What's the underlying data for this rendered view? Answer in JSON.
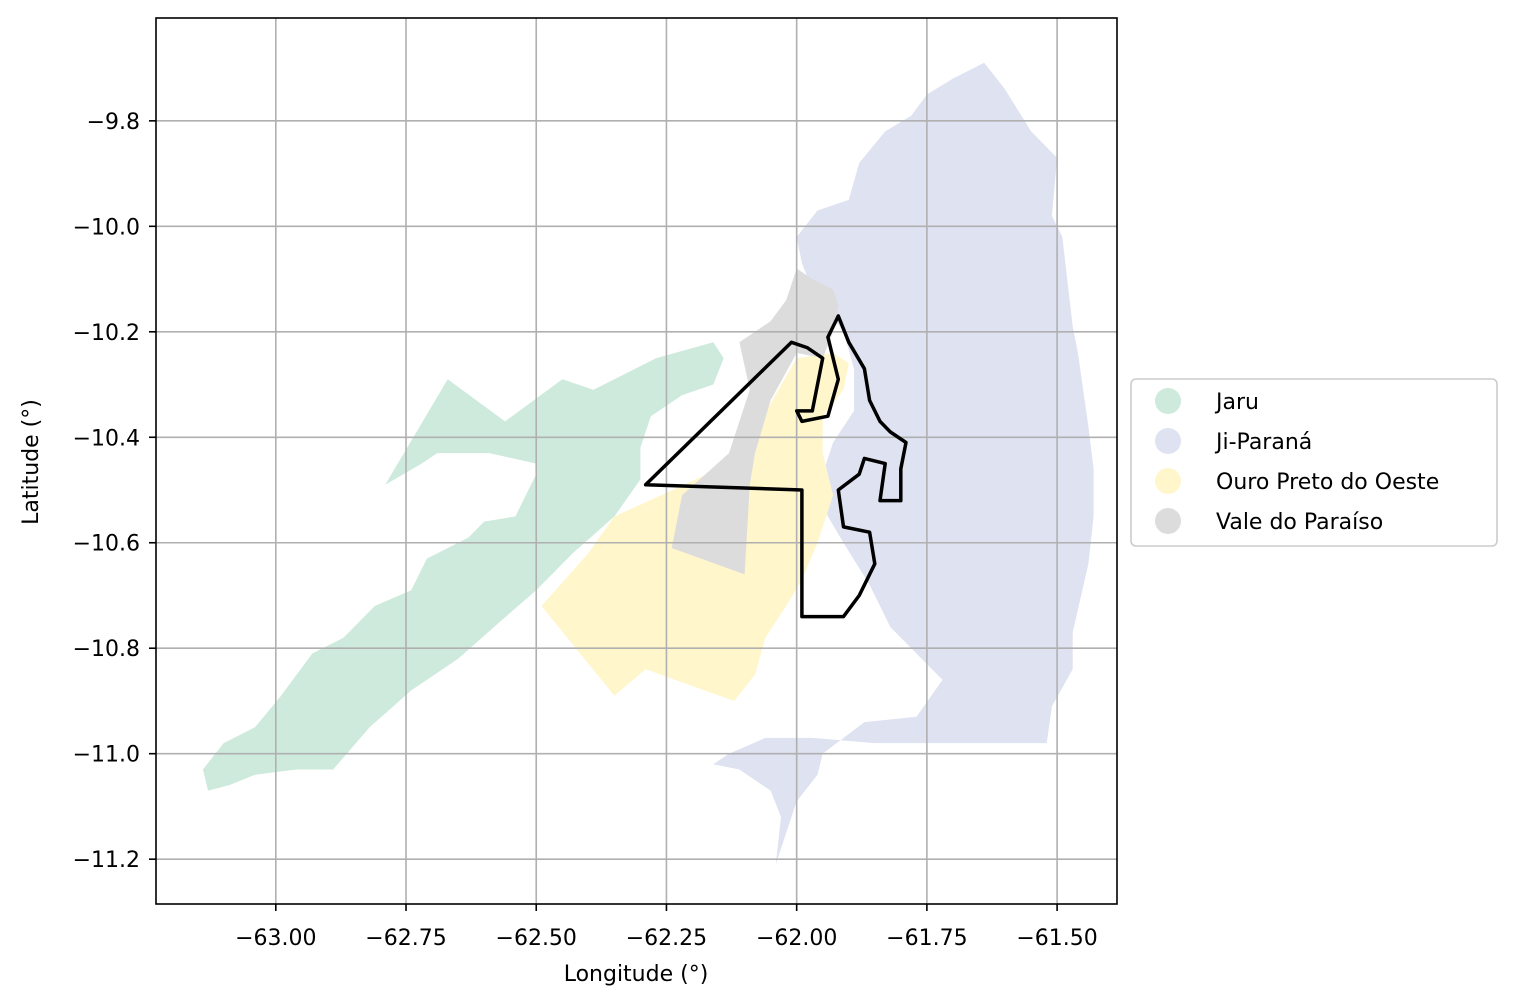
{
  "chart_data": {
    "type": "choropleth-map",
    "xlabel": "Longitude (°)",
    "ylabel": "Latitude (°)",
    "xlim": [
      -63.23,
      -61.385
    ],
    "ylim": [
      -11.285,
      -9.605
    ],
    "grid": true,
    "x_ticks": [
      {
        "value": -63.0,
        "label": "−63.00"
      },
      {
        "value": -62.75,
        "label": "−62.75"
      },
      {
        "value": -62.5,
        "label": "−62.50"
      },
      {
        "value": -62.25,
        "label": "−62.25"
      },
      {
        "value": -62.0,
        "label": "−62.00"
      },
      {
        "value": -61.75,
        "label": "−61.75"
      },
      {
        "value": -61.5,
        "label": "−61.50"
      }
    ],
    "y_ticks": [
      {
        "value": -9.8,
        "label": "−9.8"
      },
      {
        "value": -10.0,
        "label": "−10.0"
      },
      {
        "value": -10.2,
        "label": "−10.2"
      },
      {
        "value": -10.4,
        "label": "−10.4"
      },
      {
        "value": -10.6,
        "label": "−10.6"
      },
      {
        "value": -10.8,
        "label": "−10.8"
      },
      {
        "value": -11.0,
        "label": "−11.0"
      },
      {
        "value": -11.2,
        "label": "−11.2"
      }
    ],
    "legend_position": "right",
    "regions": [
      {
        "name": "Jaru",
        "color": "#cdeadc",
        "polygon": [
          [
            -63.13,
            -11.07
          ],
          [
            -63.14,
            -11.03
          ],
          [
            -63.1,
            -10.98
          ],
          [
            -63.04,
            -10.95
          ],
          [
            -62.99,
            -10.89
          ],
          [
            -62.93,
            -10.81
          ],
          [
            -62.87,
            -10.78
          ],
          [
            -62.81,
            -10.72
          ],
          [
            -62.74,
            -10.69
          ],
          [
            -62.71,
            -10.63
          ],
          [
            -62.63,
            -10.59
          ],
          [
            -62.6,
            -10.56
          ],
          [
            -62.54,
            -10.55
          ],
          [
            -62.5,
            -10.47
          ],
          [
            -62.5,
            -10.45
          ],
          [
            -62.59,
            -10.43
          ],
          [
            -62.64,
            -10.43
          ],
          [
            -62.69,
            -10.43
          ],
          [
            -62.72,
            -10.45
          ],
          [
            -62.79,
            -10.49
          ],
          [
            -62.67,
            -10.29
          ],
          [
            -62.56,
            -10.37
          ],
          [
            -62.45,
            -10.29
          ],
          [
            -62.39,
            -10.31
          ],
          [
            -62.33,
            -10.28
          ],
          [
            -62.27,
            -10.25
          ],
          [
            -62.16,
            -10.22
          ],
          [
            -62.14,
            -10.25
          ],
          [
            -62.16,
            -10.3
          ],
          [
            -62.22,
            -10.32
          ],
          [
            -62.28,
            -10.36
          ],
          [
            -62.3,
            -10.42
          ],
          [
            -62.3,
            -10.48
          ],
          [
            -62.35,
            -10.55
          ],
          [
            -62.43,
            -10.62
          ],
          [
            -62.5,
            -10.69
          ],
          [
            -62.57,
            -10.75
          ],
          [
            -62.65,
            -10.82
          ],
          [
            -62.74,
            -10.88
          ],
          [
            -62.82,
            -10.95
          ],
          [
            -62.89,
            -11.03
          ],
          [
            -62.96,
            -11.03
          ],
          [
            -63.04,
            -11.04
          ],
          [
            -63.09,
            -11.06
          ]
        ]
      },
      {
        "name": "Ji-Paraná",
        "color": "#dee2f1",
        "polygon": [
          [
            -61.64,
            -9.69
          ],
          [
            -61.6,
            -9.74
          ],
          [
            -61.55,
            -9.82
          ],
          [
            -61.5,
            -9.87
          ],
          [
            -61.51,
            -9.98
          ],
          [
            -61.49,
            -10.02
          ],
          [
            -61.47,
            -10.19
          ],
          [
            -61.46,
            -10.24
          ],
          [
            -61.44,
            -10.38
          ],
          [
            -61.43,
            -10.46
          ],
          [
            -61.43,
            -10.55
          ],
          [
            -61.44,
            -10.64
          ],
          [
            -61.47,
            -10.77
          ],
          [
            -61.47,
            -10.84
          ],
          [
            -61.51,
            -10.91
          ],
          [
            -61.52,
            -10.98
          ],
          [
            -61.7,
            -10.98
          ],
          [
            -61.85,
            -10.98
          ],
          [
            -61.97,
            -10.97
          ],
          [
            -62.06,
            -10.97
          ],
          [
            -62.13,
            -11.0
          ],
          [
            -62.16,
            -11.02
          ],
          [
            -62.11,
            -11.03
          ],
          [
            -62.05,
            -11.07
          ],
          [
            -62.03,
            -11.12
          ],
          [
            -62.04,
            -11.21
          ],
          [
            -62.02,
            -11.15
          ],
          [
            -62.0,
            -11.09
          ],
          [
            -61.96,
            -11.04
          ],
          [
            -61.95,
            -11.0
          ],
          [
            -61.87,
            -10.94
          ],
          [
            -61.77,
            -10.93
          ],
          [
            -61.72,
            -10.86
          ],
          [
            -61.78,
            -10.8
          ],
          [
            -61.82,
            -10.76
          ],
          [
            -61.86,
            -10.68
          ],
          [
            -61.91,
            -10.6
          ],
          [
            -61.94,
            -10.55
          ],
          [
            -61.96,
            -10.5
          ],
          [
            -61.93,
            -10.41
          ],
          [
            -61.89,
            -10.35
          ],
          [
            -61.89,
            -10.27
          ],
          [
            -61.91,
            -10.2
          ],
          [
            -61.94,
            -10.16
          ],
          [
            -61.97,
            -10.12
          ],
          [
            -61.99,
            -10.07
          ],
          [
            -62.0,
            -10.02
          ],
          [
            -61.96,
            -9.97
          ],
          [
            -61.9,
            -9.95
          ],
          [
            -61.88,
            -9.88
          ],
          [
            -61.83,
            -9.82
          ],
          [
            -61.78,
            -9.79
          ],
          [
            -61.75,
            -9.75
          ],
          [
            -61.7,
            -9.72
          ]
        ]
      },
      {
        "name": "Ouro Preto do Oeste",
        "color": "#fff6cc",
        "polygon": [
          [
            -62.0,
            -10.25
          ],
          [
            -61.93,
            -10.24
          ],
          [
            -61.9,
            -10.26
          ],
          [
            -61.91,
            -10.31
          ],
          [
            -61.95,
            -10.36
          ],
          [
            -61.95,
            -10.43
          ],
          [
            -61.93,
            -10.51
          ],
          [
            -61.96,
            -10.6
          ],
          [
            -61.99,
            -10.67
          ],
          [
            -62.02,
            -10.72
          ],
          [
            -62.06,
            -10.78
          ],
          [
            -62.08,
            -10.85
          ],
          [
            -62.12,
            -10.9
          ],
          [
            -62.29,
            -10.84
          ],
          [
            -62.35,
            -10.89
          ],
          [
            -62.49,
            -10.72
          ],
          [
            -62.4,
            -10.62
          ],
          [
            -62.35,
            -10.55
          ],
          [
            -62.26,
            -10.51
          ],
          [
            -62.15,
            -10.46
          ],
          [
            -62.07,
            -10.37
          ]
        ]
      },
      {
        "name": "Vale do Paraíso",
        "color": "#dcdcdc",
        "polygon": [
          [
            -62.0,
            -10.08
          ],
          [
            -61.97,
            -10.1
          ],
          [
            -61.93,
            -10.12
          ],
          [
            -61.92,
            -10.15
          ],
          [
            -61.93,
            -10.2
          ],
          [
            -61.95,
            -10.25
          ],
          [
            -62.0,
            -10.24
          ],
          [
            -62.05,
            -10.33
          ],
          [
            -62.08,
            -10.43
          ],
          [
            -62.09,
            -10.49
          ],
          [
            -62.1,
            -10.66
          ],
          [
            -62.24,
            -10.61
          ],
          [
            -62.22,
            -10.51
          ],
          [
            -62.13,
            -10.43
          ],
          [
            -62.09,
            -10.31
          ],
          [
            -62.11,
            -10.22
          ],
          [
            -62.05,
            -10.18
          ],
          [
            -62.02,
            -10.14
          ]
        ]
      }
    ],
    "outlines": [
      {
        "polygon": [
          [
            -62.29,
            -10.49
          ],
          [
            -62.01,
            -10.22
          ],
          [
            -61.98,
            -10.23
          ],
          [
            -61.95,
            -10.25
          ],
          [
            -61.97,
            -10.35
          ],
          [
            -62.0,
            -10.35
          ],
          [
            -61.99,
            -10.37
          ],
          [
            -61.94,
            -10.36
          ],
          [
            -61.92,
            -10.29
          ],
          [
            -61.94,
            -10.21
          ],
          [
            -61.92,
            -10.17
          ],
          [
            -61.9,
            -10.22
          ],
          [
            -61.87,
            -10.27
          ],
          [
            -61.86,
            -10.33
          ],
          [
            -61.84,
            -10.37
          ],
          [
            -61.82,
            -10.39
          ],
          [
            -61.79,
            -10.41
          ],
          [
            -61.8,
            -10.46
          ],
          [
            -61.8,
            -10.52
          ],
          [
            -61.84,
            -10.52
          ],
          [
            -61.83,
            -10.45
          ],
          [
            -61.87,
            -10.44
          ],
          [
            -61.88,
            -10.47
          ],
          [
            -61.92,
            -10.5
          ],
          [
            -61.91,
            -10.57
          ],
          [
            -61.86,
            -10.58
          ],
          [
            -61.85,
            -10.64
          ],
          [
            -61.88,
            -10.7
          ],
          [
            -61.91,
            -10.74
          ],
          [
            -61.99,
            -10.74
          ],
          [
            -61.99,
            -10.5
          ]
        ]
      }
    ],
    "legend": [
      {
        "label": "Jaru",
        "color": "#cdeadc"
      },
      {
        "label": "Ji-Paraná",
        "color": "#dee2f1"
      },
      {
        "label": "Ouro Preto do Oeste",
        "color": "#fff6cc"
      },
      {
        "label": "Vale do Paraíso",
        "color": "#dcdcdc"
      }
    ]
  }
}
